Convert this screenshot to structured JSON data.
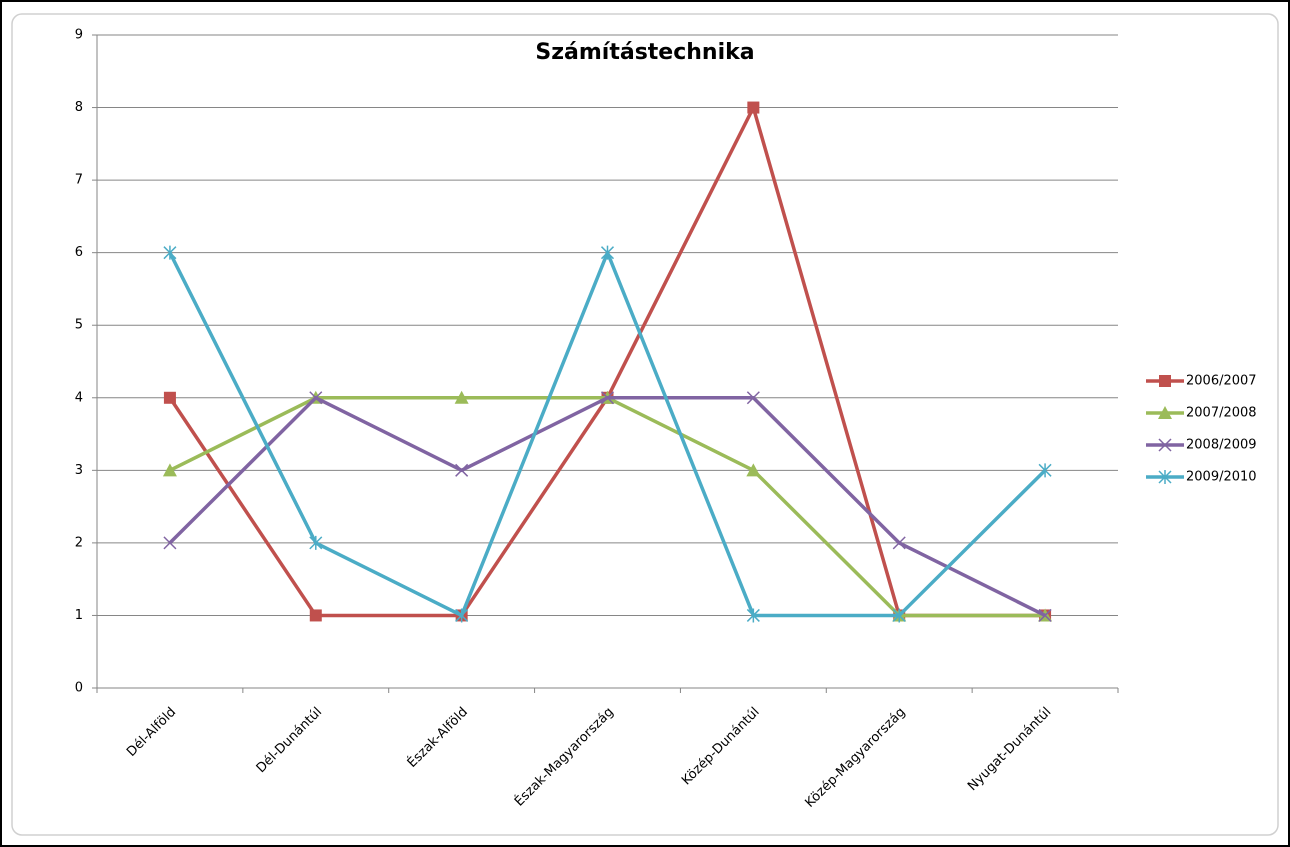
{
  "chart_data": {
    "type": "line",
    "title": "Számítástechnika",
    "categories": [
      "Dél-Alföld",
      "Dél-Dunántúl",
      "Észak-Alföld",
      "Észak-Magyarország",
      "Közép-Dunántúl",
      "Közép-Magyarország",
      "Nyugat-Dunántúl"
    ],
    "series": [
      {
        "name": "2006/2007",
        "color": "#c0504d",
        "marker": "square",
        "values": [
          4,
          1,
          1,
          4,
          8,
          1,
          1
        ]
      },
      {
        "name": "2007/2008",
        "color": "#9bbb59",
        "marker": "triangle",
        "values": [
          3,
          4,
          4,
          4,
          3,
          1,
          1
        ]
      },
      {
        "name": "2008/2009",
        "color": "#8064a2",
        "marker": "x",
        "values": [
          2,
          4,
          3,
          4,
          4,
          2,
          1
        ]
      },
      {
        "name": "2009/2010",
        "color": "#4bacc6",
        "marker": "star",
        "values": [
          6,
          2,
          1,
          6,
          1,
          1,
          3
        ]
      }
    ],
    "ylim": [
      0,
      9
    ],
    "yticks": [
      0,
      1,
      2,
      3,
      4,
      5,
      6,
      7,
      8,
      9
    ],
    "grid": true,
    "legend": "right"
  }
}
